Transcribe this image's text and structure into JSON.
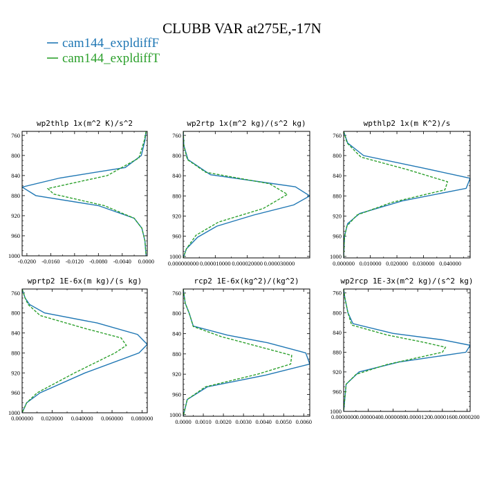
{
  "title": "CLUBB VAR at275E,-17N",
  "legend": [
    {
      "label": "cam144_expldiffF",
      "color": "#1f77b4",
      "dash": "solid"
    },
    {
      "label": "cam144_expldiffT",
      "color": "#2ca02c",
      "dash": "dashed"
    }
  ],
  "chart_data": [
    {
      "type": "line",
      "title": "wp2thlp  1x(m^2 K)/s^2",
      "xlim": [
        -0.0208,
        0.0002
      ],
      "ylim": [
        1000,
        752
      ],
      "xticks": [
        -0.02,
        -0.016,
        -0.012,
        -0.008,
        -0.004,
        0.0
      ],
      "xtick_labels": [
        "-0.0200",
        "-0.0160",
        "-0.0120",
        "-0.0080",
        "-0.0040",
        "0.0000"
      ],
      "yticks": [
        760,
        800,
        840,
        880,
        920,
        960,
        1000
      ],
      "ytick_labels": [
        "760",
        "800",
        "840",
        "880",
        "920",
        "960",
        "1000"
      ],
      "series": [
        {
          "name": "cam144_expldiffF",
          "values": [
            [
              0.0,
              752
            ],
            [
              -0.0002,
              770
            ],
            [
              -0.0008,
              800
            ],
            [
              -0.0035,
              824
            ],
            [
              -0.0145,
              845
            ],
            [
              -0.0208,
              863
            ],
            [
              -0.0185,
              880
            ],
            [
              -0.008,
              900
            ],
            [
              -0.002,
              925
            ],
            [
              -0.0007,
              945
            ],
            [
              -0.0002,
              970
            ],
            [
              0.0,
              1000
            ]
          ]
        },
        {
          "name": "cam144_expldiffT",
          "values": [
            [
              0.0,
              752
            ],
            [
              -0.0003,
              770
            ],
            [
              -0.0012,
              805
            ],
            [
              -0.0065,
              840
            ],
            [
              -0.0165,
              866
            ],
            [
              -0.0155,
              877
            ],
            [
              -0.007,
              900
            ],
            [
              -0.002,
              925
            ],
            [
              -0.0007,
              945
            ],
            [
              -0.0002,
              970
            ],
            [
              0.0,
              1000
            ]
          ]
        }
      ]
    },
    {
      "type": "line",
      "title": "wp2rtp  1x(m^2 kg)/(s^2 kg)",
      "xlim": [
        0.0,
        3.95e-05
      ],
      "ylim": [
        1003,
        752
      ],
      "xticks": [
        0.0,
        1e-05,
        2e-05,
        3e-05
      ],
      "xtick_labels": [
        "0.000000000",
        "0.000010000",
        "0.000020000",
        "0.000030000"
      ],
      "yticks": [
        760,
        800,
        840,
        880,
        920,
        960,
        1000
      ],
      "ytick_labels": [
        "760",
        "800",
        "840",
        "880",
        "920",
        "960",
        "1000"
      ],
      "series": [
        {
          "name": "cam144_expldiffF",
          "values": [
            [
              0.0,
              752
            ],
            [
              2e-07,
              780
            ],
            [
              1.5e-06,
              808
            ],
            [
              8.5e-06,
              838
            ],
            [
              3.5e-05,
              862
            ],
            [
              3.95e-05,
              880
            ],
            [
              3.45e-05,
              898
            ],
            [
              2.2e-05,
              918
            ],
            [
              1.05e-05,
              940
            ],
            [
              4.5e-06,
              962
            ],
            [
              1e-06,
              985
            ],
            [
              0.0,
              1003
            ]
          ]
        },
        {
          "name": "cam144_expldiffT",
          "values": [
            [
              0.0,
              752
            ],
            [
              2e-07,
              780
            ],
            [
              1.3e-06,
              808
            ],
            [
              7e-06,
              833
            ],
            [
              2.7e-05,
              856
            ],
            [
              3.25e-05,
              877
            ],
            [
              2.5e-05,
              905
            ],
            [
              1.1e-05,
              932
            ],
            [
              4e-06,
              958
            ],
            [
              1e-06,
              985
            ],
            [
              0.0,
              1003
            ]
          ]
        }
      ]
    },
    {
      "type": "line",
      "title": "wpthlp2  1x(m K^2)/s",
      "xlim": [
        0.0,
        0.0475
      ],
      "ylim": [
        1003,
        752
      ],
      "xticks": [
        0.0,
        0.01,
        0.02,
        0.03,
        0.04
      ],
      "xtick_labels": [
        "0.000000",
        "0.010000",
        "0.020000",
        "0.030000",
        "0.040000"
      ],
      "yticks": [
        760,
        800,
        840,
        880,
        920,
        960,
        1000
      ],
      "ytick_labels": [
        "760",
        "800",
        "840",
        "880",
        "920",
        "960",
        "1000"
      ],
      "series": [
        {
          "name": "cam144_expldiffF",
          "values": [
            [
              0.0,
              752
            ],
            [
              0.0015,
              775
            ],
            [
              0.0075,
              800
            ],
            [
              0.03,
              825
            ],
            [
              0.0475,
              845
            ],
            [
              0.046,
              865
            ],
            [
              0.022,
              890
            ],
            [
              0.006,
              915
            ],
            [
              0.0015,
              935
            ],
            [
              0.0003,
              960
            ],
            [
              0.0,
              1003
            ]
          ]
        },
        {
          "name": "cam144_expldiffT",
          "values": [
            [
              0.0,
              752
            ],
            [
              0.0013,
              775
            ],
            [
              0.0065,
              803
            ],
            [
              0.024,
              828
            ],
            [
              0.039,
              852
            ],
            [
              0.038,
              868
            ],
            [
              0.018,
              893
            ],
            [
              0.005,
              918
            ],
            [
              0.0012,
              940
            ],
            [
              0.0003,
              962
            ],
            [
              0.0,
              1003
            ]
          ]
        }
      ]
    },
    {
      "type": "line",
      "title": "wprtp2  1E-6x(m kg)/(s kg)",
      "xlim": [
        0.0,
        0.0835
      ],
      "ylim": [
        1000,
        752
      ],
      "xticks": [
        0.0,
        0.02,
        0.04,
        0.06,
        0.08
      ],
      "xtick_labels": [
        "0.000000",
        "0.020000",
        "0.040000",
        "0.060000",
        "0.080000"
      ],
      "yticks": [
        760,
        800,
        840,
        880,
        920,
        960,
        1000
      ],
      "ytick_labels": [
        "760",
        "800",
        "840",
        "880",
        "920",
        "960",
        "1000"
      ],
      "series": [
        {
          "name": "cam144_expldiffF",
          "values": [
            [
              0.0,
              752
            ],
            [
              0.002,
              770
            ],
            [
              0.005,
              783
            ],
            [
              0.015,
              800
            ],
            [
              0.05,
              820
            ],
            [
              0.077,
              843
            ],
            [
              0.0835,
              863
            ],
            [
              0.078,
              880
            ],
            [
              0.042,
              920
            ],
            [
              0.012,
              960
            ],
            [
              0.003,
              980
            ],
            [
              0.0,
              1000
            ]
          ]
        },
        {
          "name": "cam144_expldiffT",
          "values": [
            [
              0.0,
              752
            ],
            [
              0.002,
              770
            ],
            [
              0.004,
              783
            ],
            [
              0.012,
              805
            ],
            [
              0.043,
              832
            ],
            [
              0.066,
              850
            ],
            [
              0.0695,
              865
            ],
            [
              0.062,
              880
            ],
            [
              0.035,
              920
            ],
            [
              0.01,
              960
            ],
            [
              0.003,
              980
            ],
            [
              0.0,
              1000
            ]
          ]
        }
      ]
    },
    {
      "type": "line",
      "title": "rcp2  1E-6x(kg^2)/(kg^2)",
      "xlim": [
        0.0,
        0.0063
      ],
      "ylim": [
        1003,
        752
      ],
      "xticks": [
        0.0,
        0.001,
        0.002,
        0.003,
        0.004,
        0.005,
        0.006
      ],
      "xtick_labels": [
        "0.0000",
        "0.0010",
        "0.0020",
        "0.0030",
        "0.0040",
        "0.0050",
        "0.0060"
      ],
      "yticks": [
        760,
        800,
        840,
        880,
        920,
        960,
        1000
      ],
      "ytick_labels": [
        "760",
        "800",
        "840",
        "880",
        "920",
        "960",
        "1000"
      ],
      "series": [
        {
          "name": "cam144_expldiffF",
          "values": [
            [
              0.0,
              752
            ],
            [
              0.0001,
              780
            ],
            [
              0.0003,
              800
            ],
            [
              0.0005,
              825
            ],
            [
              0.0022,
              843
            ],
            [
              0.0042,
              858
            ],
            [
              0.0061,
              878
            ],
            [
              0.0063,
              900
            ],
            [
              0.0041,
              922
            ],
            [
              0.0012,
              945
            ],
            [
              0.0002,
              970
            ],
            [
              0.0,
              1003
            ]
          ]
        },
        {
          "name": "cam144_expldiffT",
          "values": [
            [
              0.0,
              752
            ],
            [
              0.0001,
              780
            ],
            [
              0.0003,
              800
            ],
            [
              0.0005,
              826
            ],
            [
              0.0019,
              846
            ],
            [
              0.0037,
              865
            ],
            [
              0.0054,
              883
            ],
            [
              0.00535,
              900
            ],
            [
              0.0037,
              920
            ],
            [
              0.0011,
              945
            ],
            [
              0.0002,
              970
            ],
            [
              0.0,
              1003
            ]
          ]
        }
      ]
    },
    {
      "type": "line",
      "title": "wp2rcp  1E-3x(m^2 kg)/(s^2 kg)",
      "xlim": [
        0.0,
        2.05e-05
      ],
      "ylim": [
        1000,
        752
      ],
      "xticks": [
        0.0,
        4e-06,
        8e-06,
        1.2e-05,
        1.6e-05,
        2e-05
      ],
      "xtick_labels": [
        "0.0000000",
        "0.0000040",
        "0.0000080",
        "0.0000120",
        "0.0000160",
        "0.0000200"
      ],
      "yticks": [
        760,
        800,
        840,
        880,
        920,
        960,
        1000
      ],
      "ytick_labels": [
        "760",
        "800",
        "840",
        "880",
        "920",
        "960",
        "1000"
      ],
      "series": [
        {
          "name": "cam144_expldiffF",
          "values": [
            [
              0.0,
              752
            ],
            [
              2e-07,
              770
            ],
            [
              7e-07,
              800
            ],
            [
              1.5e-06,
              822
            ],
            [
              8e-06,
              842
            ],
            [
              1.6e-05,
              855
            ],
            [
              2.05e-05,
              866
            ],
            [
              1.98e-05,
              880
            ],
            [
              9e-06,
              900
            ],
            [
              2.5e-06,
              920
            ],
            [
              4e-07,
              945
            ],
            [
              0.0,
              1000
            ]
          ]
        },
        {
          "name": "cam144_expldiffT",
          "values": [
            [
              0.0,
              752
            ],
            [
              2e-07,
              770
            ],
            [
              7e-07,
              800
            ],
            [
              1.3e-06,
              825
            ],
            [
              7e-06,
              845
            ],
            [
              1.3e-05,
              860
            ],
            [
              1.65e-05,
              870
            ],
            [
              1.6e-05,
              880
            ],
            [
              7e-06,
              905
            ],
            [
              2e-06,
              925
            ],
            [
              4e-07,
              945
            ],
            [
              0.0,
              1000
            ]
          ]
        }
      ]
    }
  ]
}
